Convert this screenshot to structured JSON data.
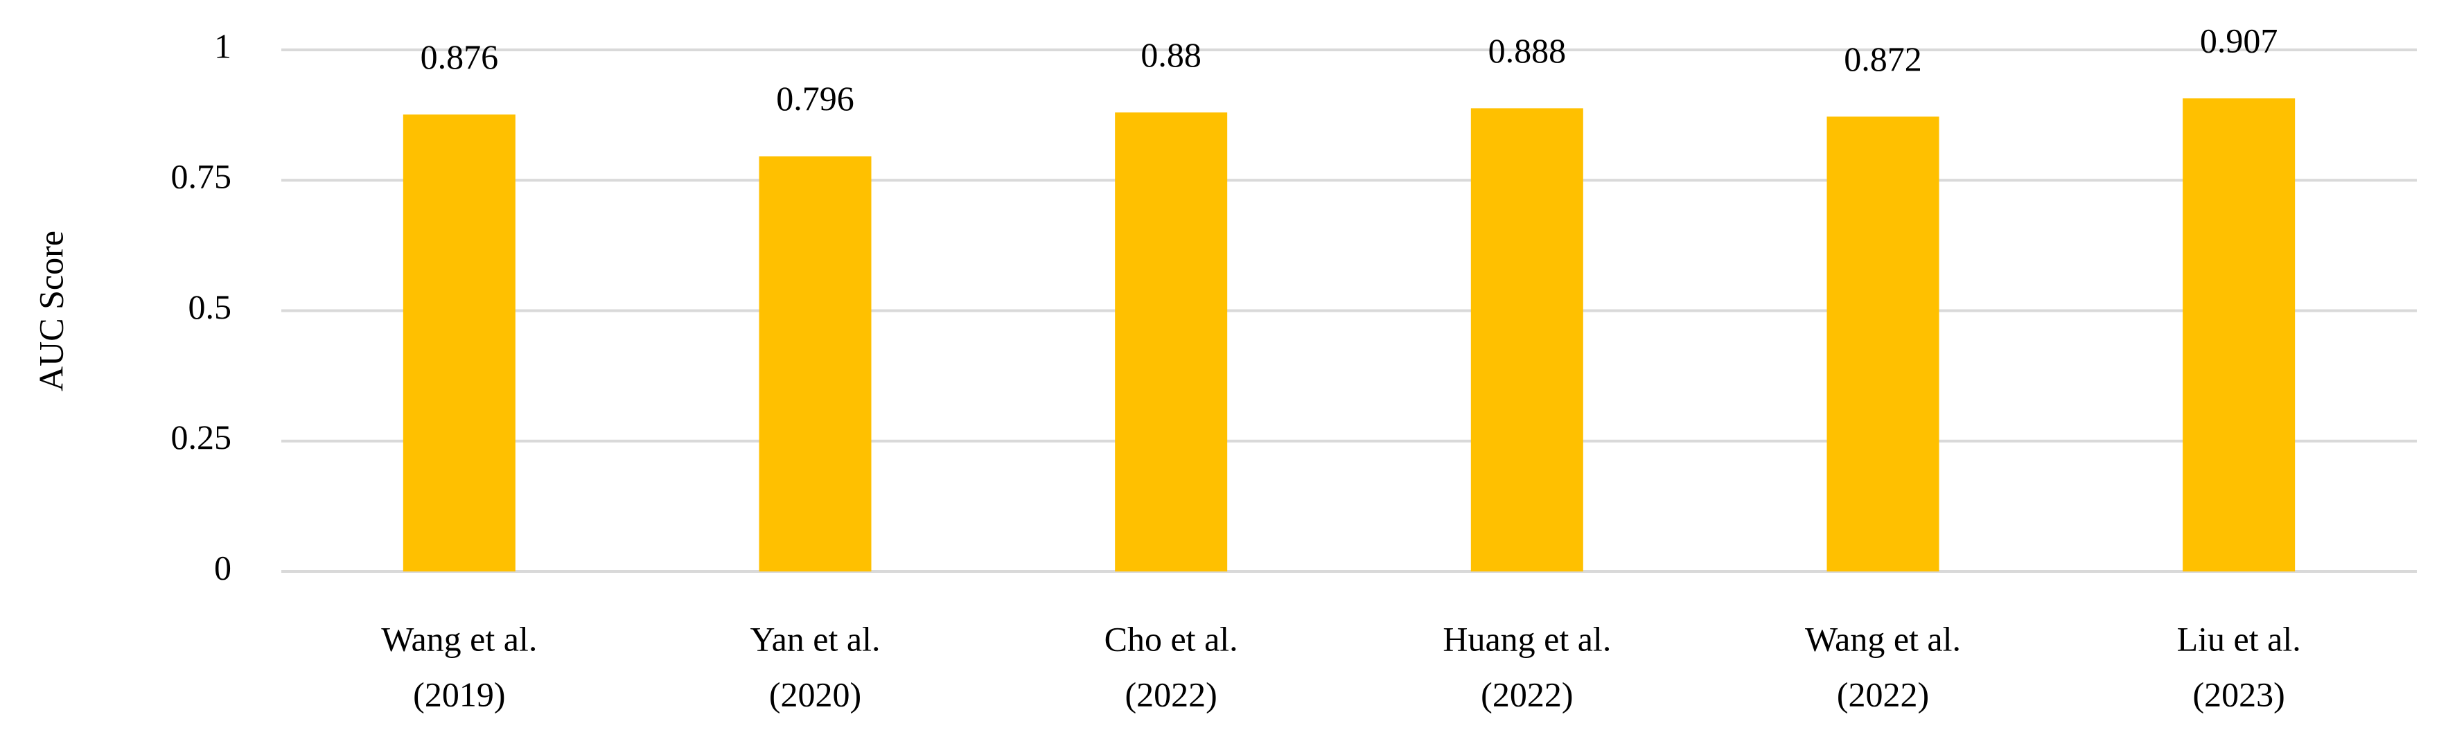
{
  "chart_data": {
    "type": "bar",
    "y_label": "AUC Score",
    "categories": [
      [
        "Wang et al.",
        "(2019)"
      ],
      [
        "Yan et al.",
        "(2020)"
      ],
      [
        "Cho et al.",
        "(2022)"
      ],
      [
        "Huang et al.",
        "(2022)"
      ],
      [
        "Wang et al.",
        "(2022)"
      ],
      [
        "Liu et al.",
        "(2023)"
      ]
    ],
    "values": [
      0.876,
      0.796,
      0.88,
      0.888,
      0.872,
      0.907
    ],
    "color": "#ffc000",
    "ylim": [
      0,
      1
    ],
    "yticks": [
      0,
      0.25,
      0.5,
      0.75,
      1
    ],
    "grid": true
  }
}
